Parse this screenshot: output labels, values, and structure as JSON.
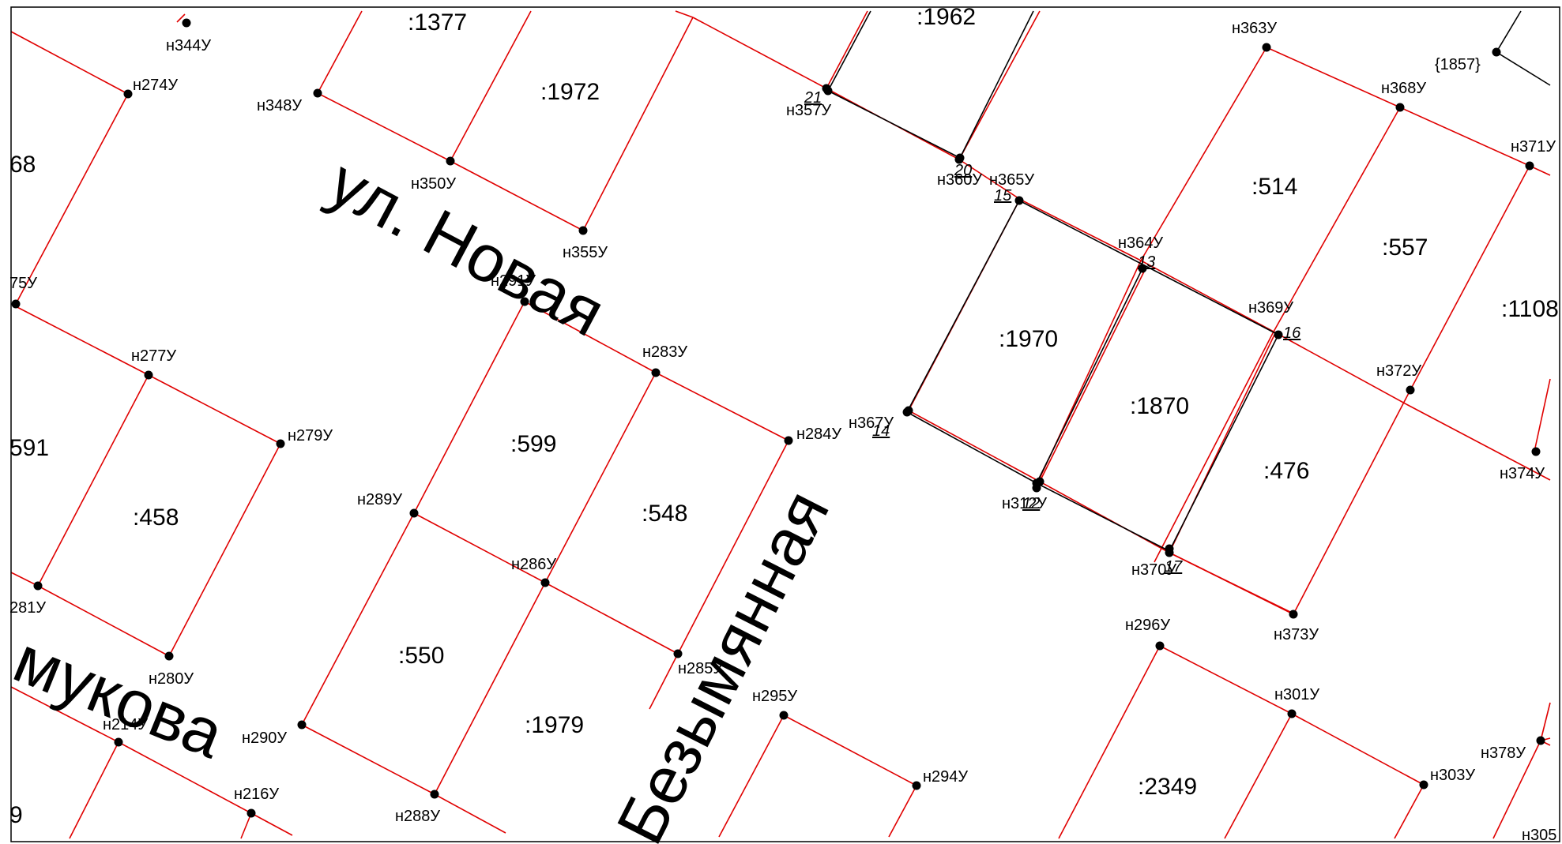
{
  "colors": {
    "boundary": "#e00000",
    "new_boundary": "#000000",
    "frame": "#000000",
    "point": "#000000"
  },
  "streets": {
    "novaya": "ул. Новая",
    "bezymyannaya": "Безымянная",
    "mukova": "мукова"
  },
  "parcels": {
    "p1377": ":1377",
    "p1962": ":1962",
    "p1972": ":1972",
    "p68": "68",
    "p514": ":514",
    "p557": ":557",
    "p1108": ":1108",
    "p1970": ":1970",
    "p1870": ":1870",
    "p476": ":476",
    "p591": "591",
    "p599": ":599",
    "p548": ":548",
    "p458": ":458",
    "p550": ":550",
    "p1979": ":1979",
    "p2349": ":2349",
    "p9": "9"
  },
  "points": {
    "n344": "н344У",
    "n274": "н274У",
    "n348": "н348У",
    "n350": "н350У",
    "n355": "н355У",
    "n357": "н357У",
    "n360": "н360У",
    "n365": "н365У",
    "n363": "н363У",
    "n1857": "{1857}",
    "n368": "н368У",
    "n371": "н371У",
    "n364": "н364У",
    "n369": "н369У",
    "n372": "н372У",
    "n374": "н374У",
    "n75": "75У",
    "n291": "н291У",
    "n283": "н283У",
    "n277": "н277У",
    "n279": "н279У",
    "n284": "н284У",
    "n367": "н367У",
    "n289": "н289У",
    "n286": "н286У",
    "n312": "н312У",
    "n370": "н370У",
    "n281": "281У",
    "n280": "н280У",
    "n285": "н285У",
    "n296": "н296У",
    "n373": "н373У",
    "n295": "н295У",
    "n301": "н301У",
    "n214": "н214У",
    "n290": "н290У",
    "n294": "н294У",
    "n378": "н378У",
    "n303": "н303У",
    "n216": "н216У",
    "n288": "н288У",
    "n305": "н305"
  },
  "numbers": {
    "c21": "21",
    "c20": "20",
    "c15": "15",
    "c13": "13",
    "c16": "16",
    "c14": "14",
    "c12": "12",
    "c17": "17"
  }
}
